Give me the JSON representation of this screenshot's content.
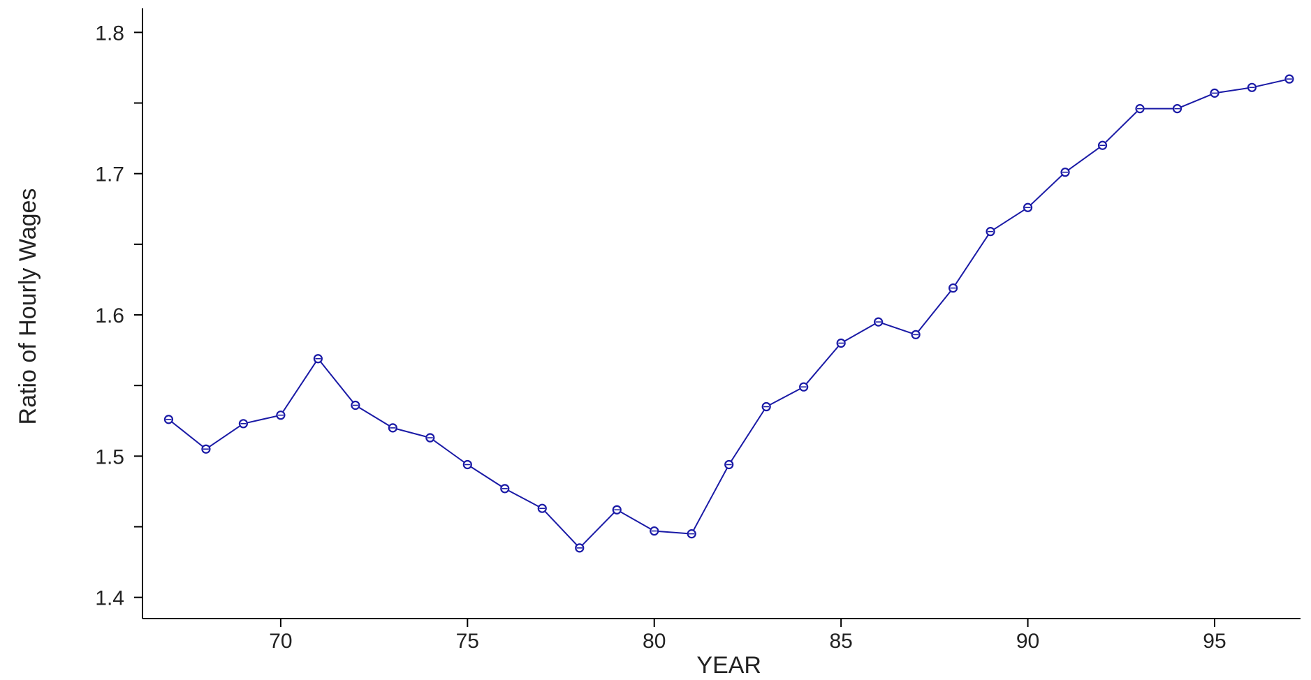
{
  "chart_data": {
    "type": "line",
    "title": "",
    "xlabel": "YEAR",
    "ylabel": "Ratio of Hourly Wages",
    "xlim": [
      66.3,
      97.3
    ],
    "ylim": [
      1.385,
      1.817
    ],
    "xticks": [
      70,
      75,
      80,
      85,
      90,
      95
    ],
    "xtick_labels": [
      "70",
      "75",
      "80",
      "85",
      "90",
      "95"
    ],
    "yticks": [
      1.4,
      1.45,
      1.5,
      1.55,
      1.6,
      1.65,
      1.7,
      1.75,
      1.8
    ],
    "ytick_labels": [
      "1.4",
      "",
      "1.5",
      "",
      "1.6",
      "",
      "1.7",
      "",
      "1.8"
    ],
    "grid": false,
    "legend": "none",
    "line_color": "#1a1aa6",
    "axis_color": "#000000",
    "series": [
      {
        "x": [
          67,
          68,
          69,
          70,
          71,
          72,
          73,
          74,
          75,
          76,
          77,
          78,
          79,
          80,
          81,
          82,
          83,
          84,
          85,
          86,
          87,
          88,
          89,
          90,
          91,
          92,
          93,
          94,
          95,
          96,
          97
        ],
        "values": [
          1.526,
          1.505,
          1.523,
          1.529,
          1.569,
          1.536,
          1.52,
          1.513,
          1.494,
          1.477,
          1.463,
          1.435,
          1.462,
          1.447,
          1.445,
          1.494,
          1.535,
          1.549,
          1.58,
          1.595,
          1.586,
          1.619,
          1.659,
          1.676,
          1.701,
          1.72,
          1.746,
          1.746,
          1.757,
          1.761,
          1.767
        ]
      }
    ]
  }
}
